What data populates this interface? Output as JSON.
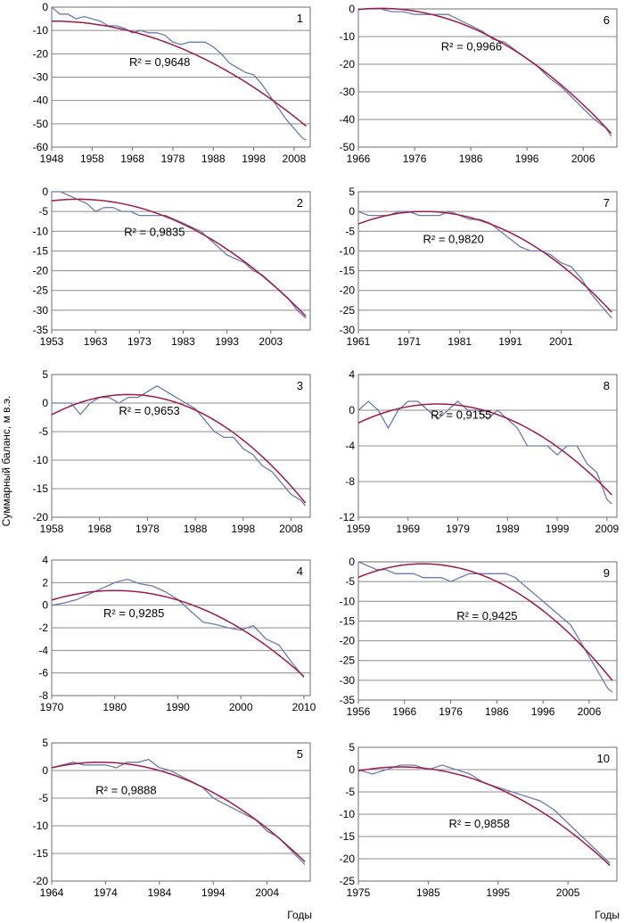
{
  "figure": {
    "y_axis_label": "Суммарный баланс, м в.э.",
    "x_axis_label": "Годы",
    "colors": {
      "observed": "#6b7bb0",
      "trend": "#9e1b48",
      "grid": "#8c8c8c"
    }
  },
  "chart_data": [
    {
      "type": "line",
      "panel": "1",
      "r2_label": "R² = 0,9648",
      "xlim": [
        1948,
        2012
      ],
      "ylim": [
        -60,
        0
      ],
      "xticks": [
        1948,
        1958,
        1968,
        1978,
        1988,
        1998,
        2008
      ],
      "yticks": [
        0,
        -10,
        -20,
        -30,
        -40,
        -50,
        -60
      ],
      "trend": {
        "x0": 1948,
        "y0": -6,
        "xpeak": 1948,
        "ypeak": -6,
        "x1": 2011,
        "y1": -51
      },
      "series": [
        {
          "x": [
            1948,
            1950,
            1952,
            1954,
            1956,
            1958,
            1960,
            1962,
            1964,
            1966,
            1968,
            1970,
            1972,
            1974,
            1976,
            1978,
            1980,
            1982,
            1984,
            1986,
            1988,
            1990,
            1992,
            1994,
            1996,
            1998,
            2000,
            2002,
            2004,
            2006,
            2008,
            2010,
            2011
          ],
          "y": [
            0,
            -3,
            -3,
            -5,
            -4,
            -5,
            -6,
            -8,
            -8,
            -9,
            -11,
            -10,
            -11,
            -11,
            -12,
            -15,
            -16,
            -15,
            -15,
            -15,
            -17,
            -20,
            -24,
            -26,
            -28,
            -29,
            -33,
            -38,
            -43,
            -48,
            -52,
            -56,
            -57
          ]
        }
      ]
    },
    {
      "type": "line",
      "panel": "6",
      "r2_label": "R² = 0,9966",
      "xlim": [
        1966,
        2012
      ],
      "ylim": [
        -50,
        0
      ],
      "xticks": [
        1966,
        1976,
        1986,
        1996,
        2006
      ],
      "yticks": [
        0,
        -10,
        -20,
        -30,
        -40,
        -50
      ],
      "trend": {
        "x0": 1966,
        "y0": 0,
        "xpeak": 1970,
        "ypeak": 0.2,
        "x1": 2011,
        "y1": -45
      },
      "series": [
        {
          "x": [
            1966,
            1968,
            1970,
            1972,
            1974,
            1976,
            1978,
            1980,
            1982,
            1984,
            1986,
            1988,
            1990,
            1992,
            1994,
            1996,
            1998,
            2000,
            2002,
            2004,
            2006,
            2008,
            2010,
            2011
          ],
          "y": [
            0,
            0,
            0,
            -1,
            -1,
            -2,
            -2,
            -2,
            -2,
            -4,
            -6,
            -8,
            -11,
            -12,
            -15,
            -18,
            -21,
            -25,
            -28,
            -32,
            -36,
            -40,
            -43,
            -46
          ]
        }
      ]
    },
    {
      "type": "line",
      "panel": "2",
      "r2_label": "R² = 0,9835",
      "xlim": [
        1953,
        2012
      ],
      "ylim": [
        -35,
        0
      ],
      "xticks": [
        1953,
        1963,
        1973,
        1983,
        1993,
        2003
      ],
      "yticks": [
        0,
        -5,
        -10,
        -15,
        -20,
        -25,
        -30,
        -35
      ],
      "trend": {
        "x0": 1953,
        "y0": -2,
        "xpeak": 1959,
        "ypeak": -1.9,
        "x1": 2011,
        "y1": -31.5
      },
      "series": [
        {
          "x": [
            1953,
            1955,
            1957,
            1959,
            1961,
            1963,
            1965,
            1967,
            1969,
            1971,
            1973,
            1975,
            1977,
            1979,
            1981,
            1983,
            1985,
            1987,
            1989,
            1991,
            1993,
            1995,
            1997,
            1999,
            2001,
            2003,
            2005,
            2007,
            2009,
            2011
          ],
          "y": [
            0,
            0,
            -1,
            -2,
            -3,
            -5,
            -4,
            -4,
            -5,
            -5,
            -6,
            -6,
            -6,
            -6,
            -7,
            -8,
            -9,
            -10,
            -12,
            -14,
            -16,
            -17,
            -18,
            -20,
            -21,
            -23,
            -25,
            -27,
            -30,
            -32
          ]
        }
      ]
    },
    {
      "type": "line",
      "panel": "7",
      "r2_label": "R² = 0,9820",
      "xlim": [
        1961,
        2012
      ],
      "ylim": [
        -30,
        5
      ],
      "xticks": [
        1961,
        1971,
        1981,
        1991,
        2001
      ],
      "yticks": [
        5,
        0,
        -5,
        -10,
        -15,
        -20,
        -25,
        -30
      ],
      "trend": {
        "x0": 1961,
        "y0": -2,
        "xpeak": 1974,
        "ypeak": 0,
        "x1": 2011,
        "y1": -25.5
      },
      "series": [
        {
          "x": [
            1961,
            1963,
            1965,
            1967,
            1969,
            1971,
            1973,
            1975,
            1977,
            1979,
            1981,
            1983,
            1985,
            1987,
            1989,
            1991,
            1993,
            1995,
            1997,
            1999,
            2001,
            2003,
            2005,
            2007,
            2009,
            2011
          ],
          "y": [
            0,
            -1,
            -1,
            -1,
            0,
            0,
            -1,
            -1,
            -1,
            0,
            -1,
            -2,
            -2,
            -3,
            -5,
            -7,
            -9,
            -10,
            -10,
            -11,
            -13,
            -14,
            -17,
            -21,
            -24,
            -27
          ]
        }
      ]
    },
    {
      "type": "line",
      "panel": "3",
      "r2_label": "R² = 0,9653",
      "xlim": [
        1958,
        2012
      ],
      "ylim": [
        -20,
        5
      ],
      "xticks": [
        1958,
        1968,
        1978,
        1988,
        1998,
        2008
      ],
      "yticks": [
        5,
        0,
        -5,
        -10,
        -15,
        -20
      ],
      "trend": {
        "x0": 1958,
        "y0": -2,
        "xpeak": 1974,
        "ypeak": 1.5,
        "x1": 2011,
        "y1": -17.5
      },
      "series": [
        {
          "x": [
            1958,
            1960,
            1962,
            1964,
            1966,
            1968,
            1970,
            1972,
            1974,
            1976,
            1978,
            1980,
            1982,
            1984,
            1986,
            1988,
            1990,
            1992,
            1994,
            1996,
            1998,
            2000,
            2002,
            2004,
            2006,
            2008,
            2010,
            2011
          ],
          "y": [
            0,
            0,
            0,
            -2,
            0,
            1,
            1,
            0,
            1,
            1,
            2,
            3,
            2,
            1,
            0,
            -1,
            -3,
            -5,
            -6,
            -6,
            -8,
            -9,
            -11,
            -12,
            -14,
            -16,
            -17,
            -18
          ]
        }
      ]
    },
    {
      "type": "line",
      "panel": "8",
      "r2_label": "R² = 0,9155",
      "xlim": [
        1959,
        2011
      ],
      "ylim": [
        -12,
        4
      ],
      "xticks": [
        1959,
        1969,
        1979,
        1989,
        1999,
        2009
      ],
      "yticks": [
        4,
        0,
        -4,
        -8,
        -12
      ],
      "trend": {
        "x0": 1959,
        "y0": -0.5,
        "xpeak": 1975,
        "ypeak": 0.7,
        "x1": 2010,
        "y1": -9.5
      },
      "series": [
        {
          "x": [
            1959,
            1961,
            1963,
            1965,
            1967,
            1969,
            1971,
            1973,
            1975,
            1977,
            1979,
            1981,
            1983,
            1985,
            1987,
            1989,
            1991,
            1993,
            1995,
            1997,
            1999,
            2001,
            2003,
            2005,
            2007,
            2009,
            2010
          ],
          "y": [
            0,
            1,
            0,
            -2,
            0,
            1,
            1,
            0,
            -1,
            0,
            1,
            0,
            0,
            -1,
            0,
            -1,
            -2,
            -4,
            -4,
            -4,
            -5,
            -4,
            -4,
            -6,
            -7,
            -10,
            -10.5
          ]
        }
      ]
    },
    {
      "type": "line",
      "panel": "4",
      "r2_label": "R² = 0,9285",
      "xlim": [
        1970,
        2011
      ],
      "ylim": [
        -8,
        4
      ],
      "xticks": [
        1970,
        1980,
        1990,
        2000,
        2010
      ],
      "yticks": [
        4,
        2,
        0,
        -2,
        -4,
        -6,
        -8
      ],
      "trend": {
        "x0": 1970,
        "y0": 0.4,
        "xpeak": 1980,
        "ypeak": 1.3,
        "x1": 2010,
        "y1": -6.3
      },
      "series": [
        {
          "x": [
            1970,
            1972,
            1974,
            1976,
            1978,
            1980,
            1982,
            1984,
            1986,
            1988,
            1990,
            1992,
            1994,
            1996,
            1998,
            2000,
            2002,
            2004,
            2006,
            2008,
            2010
          ],
          "y": [
            0,
            0.2,
            0.5,
            1,
            1.5,
            2,
            2.3,
            1.9,
            1.7,
            1.2,
            0.5,
            -0.5,
            -1.5,
            -1.7,
            -2,
            -2.2,
            -1.8,
            -3,
            -3.5,
            -5,
            -6.4
          ]
        }
      ]
    },
    {
      "type": "line",
      "panel": "9",
      "r2_label": "R² = 0,9425",
      "xlim": [
        1956,
        2012
      ],
      "ylim": [
        -35,
        0
      ],
      "xticks": [
        1956,
        1966,
        1976,
        1986,
        1996,
        2006
      ],
      "yticks": [
        0,
        -5,
        -10,
        -15,
        -20,
        -25,
        -30,
        -35
      ],
      "trend": {
        "x0": 1956,
        "y0": -4,
        "xpeak": 1970,
        "ypeak": -0.5,
        "x1": 2011,
        "y1": -30
      },
      "series": [
        {
          "x": [
            1956,
            1958,
            1960,
            1962,
            1964,
            1966,
            1968,
            1970,
            1972,
            1974,
            1976,
            1978,
            1980,
            1982,
            1984,
            1986,
            1988,
            1990,
            1992,
            1994,
            1996,
            1998,
            2000,
            2002,
            2004,
            2006,
            2008,
            2010,
            2011
          ],
          "y": [
            0,
            -1,
            -2,
            -2,
            -3,
            -3,
            -3,
            -4,
            -4,
            -4,
            -5,
            -4,
            -3,
            -3,
            -3,
            -3,
            -3,
            -4,
            -6,
            -8,
            -10,
            -12,
            -14,
            -16,
            -20,
            -24,
            -28,
            -32,
            -33
          ]
        }
      ]
    },
    {
      "type": "line",
      "panel": "5",
      "r2_label": "R² = 0,9888",
      "xlim": [
        1964,
        2012
      ],
      "ylim": [
        -20,
        5
      ],
      "xticks": [
        1964,
        1974,
        1984,
        1994,
        2004
      ],
      "yticks": [
        5,
        0,
        -5,
        -10,
        -15,
        -20
      ],
      "trend": {
        "x0": 1964,
        "y0": 0.5,
        "xpeak": 1973,
        "ypeak": 1.5,
        "x1": 2011,
        "y1": -16.5
      },
      "series": [
        {
          "x": [
            1964,
            1966,
            1968,
            1970,
            1972,
            1974,
            1976,
            1978,
            1980,
            1982,
            1984,
            1986,
            1988,
            1990,
            1992,
            1994,
            1996,
            1998,
            2000,
            2002,
            2004,
            2006,
            2008,
            2010,
            2011
          ],
          "y": [
            0.5,
            1,
            1.5,
            1,
            1,
            1,
            0.5,
            1.5,
            1.5,
            2,
            0.5,
            0,
            -1,
            -2,
            -3,
            -5,
            -6,
            -7,
            -8,
            -9,
            -11,
            -12,
            -14,
            -16,
            -17
          ]
        }
      ]
    },
    {
      "type": "line",
      "panel": "10",
      "r2_label": "R² = 0,9858",
      "xlim": [
        1975,
        2012
      ],
      "ylim": [
        -25,
        5
      ],
      "xticks": [
        1975,
        1985,
        1995,
        2005
      ],
      "yticks": [
        5,
        0,
        -5,
        -10,
        -15,
        -20,
        -25
      ],
      "trend": {
        "x0": 1975,
        "y0": 0,
        "xpeak": 1981,
        "ypeak": 0.6,
        "x1": 2011,
        "y1": -21.5
      },
      "series": [
        {
          "x": [
            1975,
            1977,
            1979,
            1981,
            1983,
            1985,
            1987,
            1989,
            1991,
            1993,
            1995,
            1997,
            1999,
            2001,
            2003,
            2005,
            2007,
            2009,
            2011
          ],
          "y": [
            0,
            -1,
            0,
            1,
            1,
            0,
            1,
            0,
            -1,
            -3,
            -4,
            -5,
            -6,
            -7,
            -9,
            -12,
            -15,
            -18,
            -21
          ]
        }
      ]
    }
  ]
}
